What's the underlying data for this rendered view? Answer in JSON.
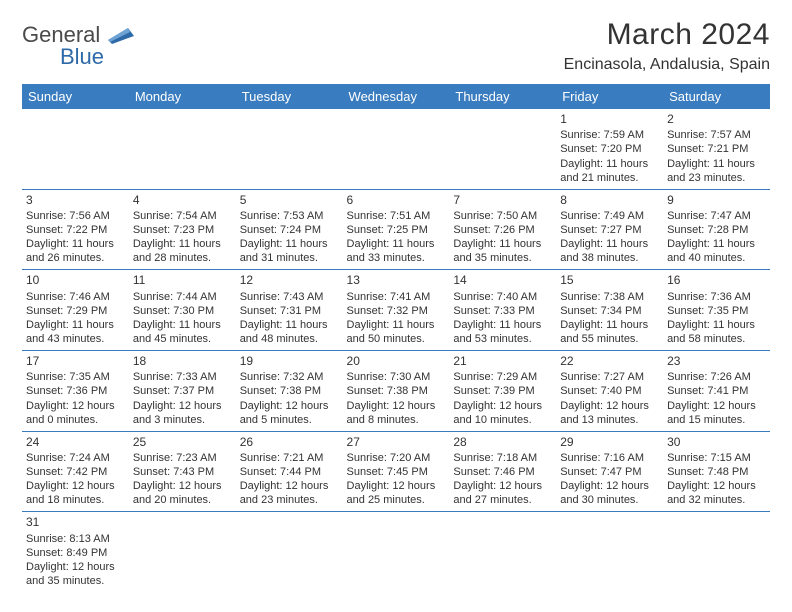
{
  "logo": {
    "text_a": "General",
    "text_b": "Blue",
    "mark_color": "#2f6aa8"
  },
  "header": {
    "title": "March 2024",
    "location": "Encinasola, Andalusia, Spain"
  },
  "style": {
    "header_bg": "#3a7cc0",
    "header_fg": "#ffffff",
    "border_color": "#3a7cc0",
    "day_font_size": 11,
    "title_font_size": 30,
    "subtitle_font_size": 16,
    "daynum_font_size": 12
  },
  "days_of_week": [
    "Sunday",
    "Monday",
    "Tuesday",
    "Wednesday",
    "Thursday",
    "Friday",
    "Saturday"
  ],
  "cells": [
    [
      {
        "empty": true
      },
      {
        "empty": true
      },
      {
        "empty": true
      },
      {
        "empty": true
      },
      {
        "empty": true
      },
      {
        "day": "1",
        "sunrise": "Sunrise: 7:59 AM",
        "sunset": "Sunset: 7:20 PM",
        "daylight": "Daylight: 11 hours and 21 minutes."
      },
      {
        "day": "2",
        "sunrise": "Sunrise: 7:57 AM",
        "sunset": "Sunset: 7:21 PM",
        "daylight": "Daylight: 11 hours and 23 minutes."
      }
    ],
    [
      {
        "day": "3",
        "sunrise": "Sunrise: 7:56 AM",
        "sunset": "Sunset: 7:22 PM",
        "daylight": "Daylight: 11 hours and 26 minutes."
      },
      {
        "day": "4",
        "sunrise": "Sunrise: 7:54 AM",
        "sunset": "Sunset: 7:23 PM",
        "daylight": "Daylight: 11 hours and 28 minutes."
      },
      {
        "day": "5",
        "sunrise": "Sunrise: 7:53 AM",
        "sunset": "Sunset: 7:24 PM",
        "daylight": "Daylight: 11 hours and 31 minutes."
      },
      {
        "day": "6",
        "sunrise": "Sunrise: 7:51 AM",
        "sunset": "Sunset: 7:25 PM",
        "daylight": "Daylight: 11 hours and 33 minutes."
      },
      {
        "day": "7",
        "sunrise": "Sunrise: 7:50 AM",
        "sunset": "Sunset: 7:26 PM",
        "daylight": "Daylight: 11 hours and 35 minutes."
      },
      {
        "day": "8",
        "sunrise": "Sunrise: 7:49 AM",
        "sunset": "Sunset: 7:27 PM",
        "daylight": "Daylight: 11 hours and 38 minutes."
      },
      {
        "day": "9",
        "sunrise": "Sunrise: 7:47 AM",
        "sunset": "Sunset: 7:28 PM",
        "daylight": "Daylight: 11 hours and 40 minutes."
      }
    ],
    [
      {
        "day": "10",
        "sunrise": "Sunrise: 7:46 AM",
        "sunset": "Sunset: 7:29 PM",
        "daylight": "Daylight: 11 hours and 43 minutes."
      },
      {
        "day": "11",
        "sunrise": "Sunrise: 7:44 AM",
        "sunset": "Sunset: 7:30 PM",
        "daylight": "Daylight: 11 hours and 45 minutes."
      },
      {
        "day": "12",
        "sunrise": "Sunrise: 7:43 AM",
        "sunset": "Sunset: 7:31 PM",
        "daylight": "Daylight: 11 hours and 48 minutes."
      },
      {
        "day": "13",
        "sunrise": "Sunrise: 7:41 AM",
        "sunset": "Sunset: 7:32 PM",
        "daylight": "Daylight: 11 hours and 50 minutes."
      },
      {
        "day": "14",
        "sunrise": "Sunrise: 7:40 AM",
        "sunset": "Sunset: 7:33 PM",
        "daylight": "Daylight: 11 hours and 53 minutes."
      },
      {
        "day": "15",
        "sunrise": "Sunrise: 7:38 AM",
        "sunset": "Sunset: 7:34 PM",
        "daylight": "Daylight: 11 hours and 55 minutes."
      },
      {
        "day": "16",
        "sunrise": "Sunrise: 7:36 AM",
        "sunset": "Sunset: 7:35 PM",
        "daylight": "Daylight: 11 hours and 58 minutes."
      }
    ],
    [
      {
        "day": "17",
        "sunrise": "Sunrise: 7:35 AM",
        "sunset": "Sunset: 7:36 PM",
        "daylight": "Daylight: 12 hours and 0 minutes."
      },
      {
        "day": "18",
        "sunrise": "Sunrise: 7:33 AM",
        "sunset": "Sunset: 7:37 PM",
        "daylight": "Daylight: 12 hours and 3 minutes."
      },
      {
        "day": "19",
        "sunrise": "Sunrise: 7:32 AM",
        "sunset": "Sunset: 7:38 PM",
        "daylight": "Daylight: 12 hours and 5 minutes."
      },
      {
        "day": "20",
        "sunrise": "Sunrise: 7:30 AM",
        "sunset": "Sunset: 7:38 PM",
        "daylight": "Daylight: 12 hours and 8 minutes."
      },
      {
        "day": "21",
        "sunrise": "Sunrise: 7:29 AM",
        "sunset": "Sunset: 7:39 PM",
        "daylight": "Daylight: 12 hours and 10 minutes."
      },
      {
        "day": "22",
        "sunrise": "Sunrise: 7:27 AM",
        "sunset": "Sunset: 7:40 PM",
        "daylight": "Daylight: 12 hours and 13 minutes."
      },
      {
        "day": "23",
        "sunrise": "Sunrise: 7:26 AM",
        "sunset": "Sunset: 7:41 PM",
        "daylight": "Daylight: 12 hours and 15 minutes."
      }
    ],
    [
      {
        "day": "24",
        "sunrise": "Sunrise: 7:24 AM",
        "sunset": "Sunset: 7:42 PM",
        "daylight": "Daylight: 12 hours and 18 minutes."
      },
      {
        "day": "25",
        "sunrise": "Sunrise: 7:23 AM",
        "sunset": "Sunset: 7:43 PM",
        "daylight": "Daylight: 12 hours and 20 minutes."
      },
      {
        "day": "26",
        "sunrise": "Sunrise: 7:21 AM",
        "sunset": "Sunset: 7:44 PM",
        "daylight": "Daylight: 12 hours and 23 minutes."
      },
      {
        "day": "27",
        "sunrise": "Sunrise: 7:20 AM",
        "sunset": "Sunset: 7:45 PM",
        "daylight": "Daylight: 12 hours and 25 minutes."
      },
      {
        "day": "28",
        "sunrise": "Sunrise: 7:18 AM",
        "sunset": "Sunset: 7:46 PM",
        "daylight": "Daylight: 12 hours and 27 minutes."
      },
      {
        "day": "29",
        "sunrise": "Sunrise: 7:16 AM",
        "sunset": "Sunset: 7:47 PM",
        "daylight": "Daylight: 12 hours and 30 minutes."
      },
      {
        "day": "30",
        "sunrise": "Sunrise: 7:15 AM",
        "sunset": "Sunset: 7:48 PM",
        "daylight": "Daylight: 12 hours and 32 minutes."
      }
    ],
    [
      {
        "day": "31",
        "sunrise": "Sunrise: 8:13 AM",
        "sunset": "Sunset: 8:49 PM",
        "daylight": "Daylight: 12 hours and 35 minutes."
      },
      {
        "empty": true
      },
      {
        "empty": true
      },
      {
        "empty": true
      },
      {
        "empty": true
      },
      {
        "empty": true
      },
      {
        "empty": true
      }
    ]
  ]
}
